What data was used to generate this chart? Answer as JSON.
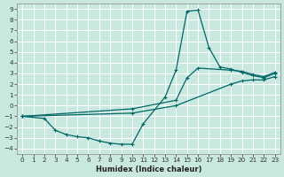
{
  "xlabel": "Humidex (Indice chaleur)",
  "bg_color": "#c8e8e0",
  "grid_color": "#ffffff",
  "line_color": "#006666",
  "markersize": 2.5,
  "linewidth": 0.9,
  "xlim": [
    -0.5,
    23.5
  ],
  "ylim": [
    -4.5,
    9.5
  ],
  "xticks": [
    0,
    1,
    2,
    3,
    4,
    5,
    6,
    7,
    8,
    9,
    10,
    11,
    12,
    13,
    14,
    15,
    16,
    17,
    18,
    19,
    20,
    21,
    22,
    23
  ],
  "yticks": [
    -4,
    -3,
    -2,
    -1,
    0,
    1,
    2,
    3,
    4,
    5,
    6,
    7,
    8,
    9
  ],
  "lines": [
    {
      "points": [
        [
          0,
          -1
        ],
        [
          2,
          -1.2
        ],
        [
          3,
          -2.3
        ],
        [
          4,
          -2.7
        ],
        [
          5,
          -2.9
        ],
        [
          6,
          -3.0
        ],
        [
          7,
          -3.3
        ],
        [
          8,
          -3.5
        ],
        [
          9,
          -3.6
        ],
        [
          10,
          -3.6
        ],
        [
          11,
          -1.7
        ],
        [
          13,
          0.8
        ],
        [
          14,
          3.3
        ],
        [
          15,
          8.8
        ],
        [
          16,
          8.9
        ],
        [
          17,
          5.4
        ],
        [
          18,
          3.6
        ],
        [
          19,
          3.4
        ],
        [
          20,
          3.1
        ],
        [
          21,
          2.8
        ],
        [
          22,
          2.6
        ],
        [
          23,
          3.0
        ]
      ]
    },
    {
      "points": [
        [
          0,
          -1
        ],
        [
          10,
          -0.3
        ],
        [
          14,
          0.5
        ],
        [
          15,
          2.6
        ],
        [
          16,
          3.5
        ],
        [
          19,
          3.3
        ],
        [
          20,
          3.2
        ],
        [
          21,
          2.9
        ],
        [
          22,
          2.7
        ],
        [
          23,
          3.1
        ]
      ]
    },
    {
      "points": [
        [
          0,
          -1
        ],
        [
          10,
          -0.7
        ],
        [
          14,
          0.0
        ],
        [
          19,
          2.0
        ],
        [
          20,
          2.3
        ],
        [
          21,
          2.4
        ],
        [
          22,
          2.4
        ],
        [
          23,
          2.7
        ]
      ]
    }
  ]
}
